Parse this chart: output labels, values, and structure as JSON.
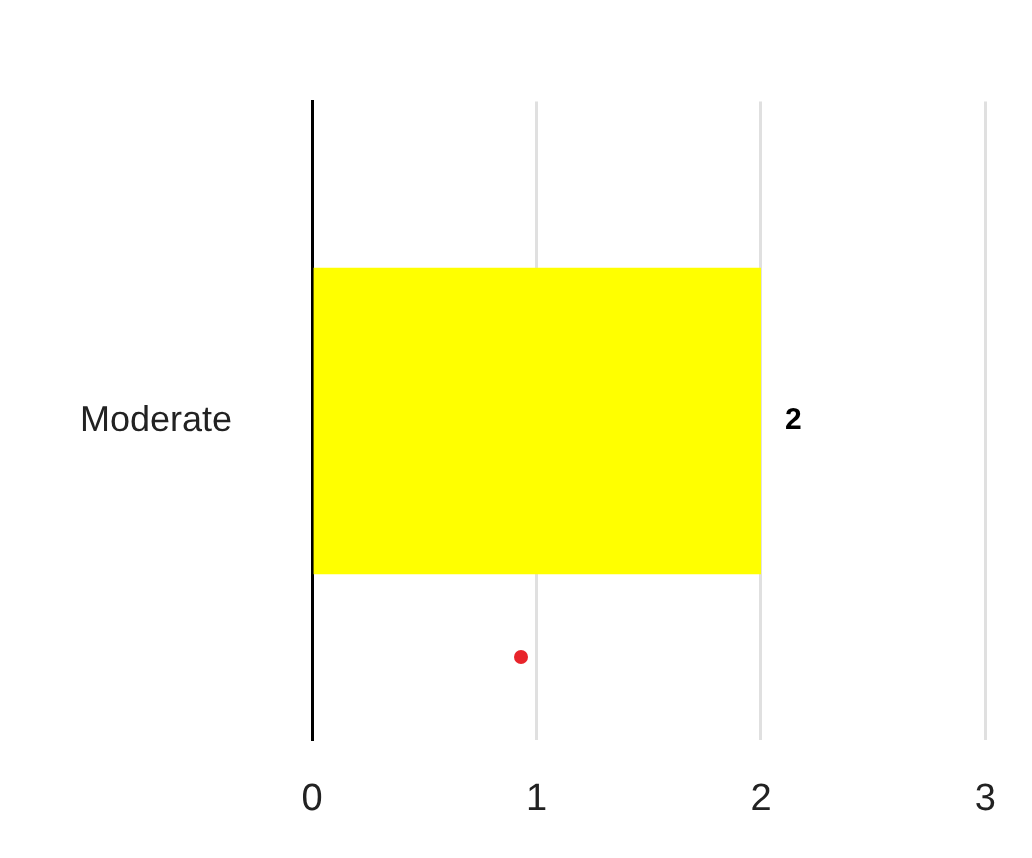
{
  "chart_data": {
    "type": "bar",
    "orientation": "horizontal",
    "categories": [
      "Moderate"
    ],
    "values": [
      2
    ],
    "color": "#ffff00",
    "xlim": [
      0,
      3
    ],
    "xticks": [
      0,
      1,
      2,
      3
    ],
    "grid": "x",
    "legend": false,
    "data_labels": true
  }
}
